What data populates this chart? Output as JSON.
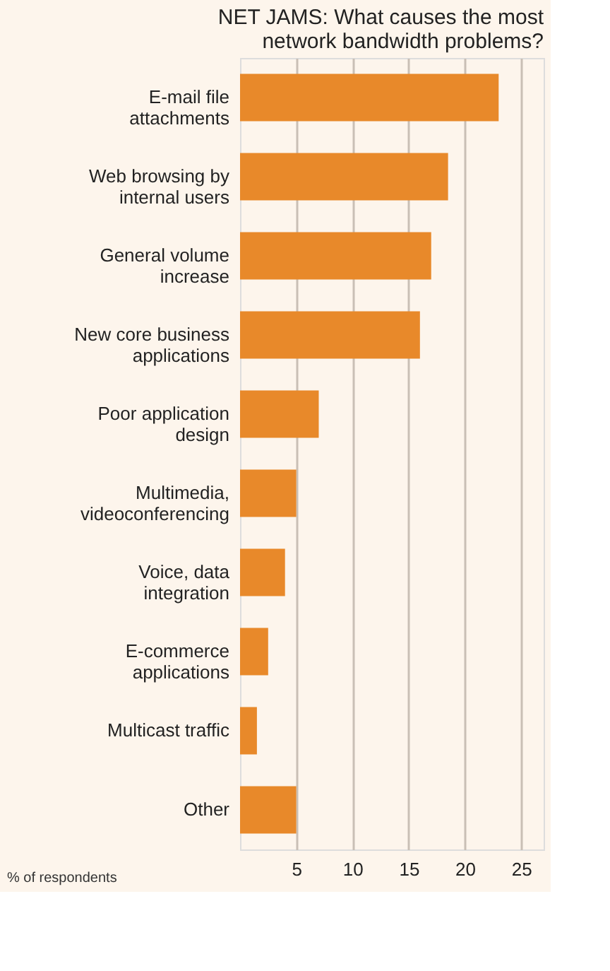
{
  "chart_data": {
    "type": "bar",
    "orientation": "horizontal",
    "title": "NET JAMS: What causes the most network bandwidth problems?",
    "categories": [
      "E-mail file\nattachments",
      "Web browsing by\ninternal users",
      "General volume\nincrease",
      "New core business\napplications",
      "Poor application\ndesign",
      "Multimedia,\nvideoconferencing",
      "Voice, data\nintegration",
      "E-commerce\napplications",
      "Multicast traffic",
      "Other"
    ],
    "values": [
      23,
      18.5,
      17,
      16,
      7,
      5,
      4,
      2.5,
      1.5,
      5
    ],
    "color": "#e8892a",
    "xlim": [
      0,
      27
    ],
    "xticks": [
      5,
      10,
      15,
      20,
      25
    ],
    "grid": "x",
    "annotations": [
      "% of respondents"
    ]
  }
}
